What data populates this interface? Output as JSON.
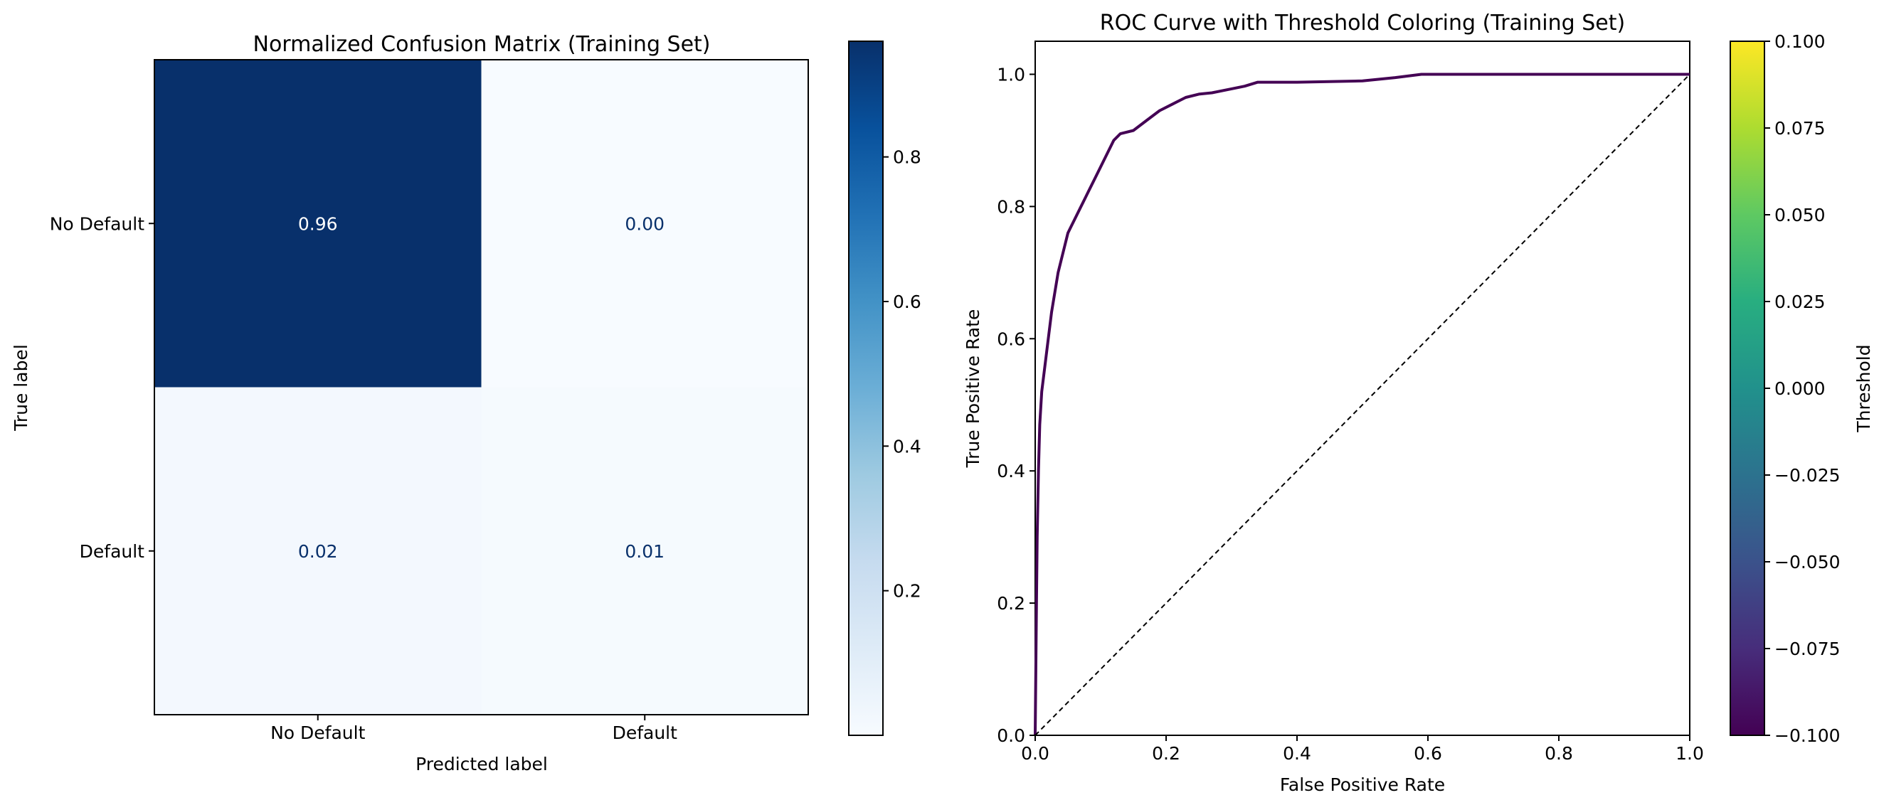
{
  "chart_data": [
    {
      "type": "heatmap",
      "title": "Normalized Confusion Matrix (Training Set)",
      "xlabel": "Predicted label",
      "ylabel": "True label",
      "x_categories": [
        "No Default",
        "Default"
      ],
      "y_categories": [
        "No Default",
        "Default"
      ],
      "values": [
        [
          0.96,
          0.0
        ],
        [
          0.02,
          0.01
        ]
      ],
      "cell_labels": [
        [
          "0.96",
          "0.00"
        ],
        [
          "0.02",
          "0.01"
        ]
      ],
      "colormap": "Blues",
      "colorbar": {
        "range": [
          0.0,
          0.96
        ],
        "ticks": [
          0.2,
          0.4,
          0.6,
          0.8
        ],
        "tick_labels": [
          "0.2",
          "0.4",
          "0.6",
          "0.8"
        ],
        "label": ""
      },
      "grid": false
    },
    {
      "type": "line",
      "title": "ROC Curve with Threshold Coloring (Training Set)",
      "xlabel": "False Positive Rate",
      "ylabel": "True Positive Rate",
      "xlim": [
        0,
        1
      ],
      "ylim": [
        0,
        1.05
      ],
      "x_ticks": [
        "0.0",
        "0.2",
        "0.4",
        "0.6",
        "0.8",
        "1.0"
      ],
      "y_ticks": [
        "0.0",
        "0.2",
        "0.4",
        "0.6",
        "0.8",
        "1.0"
      ],
      "series": [
        {
          "color": "#440154",
          "x": [
            0,
            0.001,
            0.002,
            0.003,
            0.005,
            0.007,
            0.01,
            0.015,
            0.02,
            0.025,
            0.03,
            0.035,
            0.04,
            0.045,
            0.05,
            0.055,
            0.06,
            0.07,
            0.08,
            0.09,
            0.1,
            0.11,
            0.12,
            0.13,
            0.15,
            0.17,
            0.19,
            0.21,
            0.23,
            0.25,
            0.27,
            0.3,
            0.32,
            0.34,
            0.4,
            0.5,
            0.55,
            0.59,
            0.7,
            0.8,
            0.9,
            1.0
          ],
          "y": [
            0,
            0.1,
            0.2,
            0.3,
            0.4,
            0.47,
            0.52,
            0.56,
            0.6,
            0.64,
            0.67,
            0.7,
            0.72,
            0.74,
            0.76,
            0.77,
            0.78,
            0.8,
            0.82,
            0.84,
            0.86,
            0.88,
            0.9,
            0.91,
            0.915,
            0.93,
            0.945,
            0.955,
            0.965,
            0.97,
            0.972,
            0.978,
            0.982,
            0.988,
            0.988,
            0.99,
            0.995,
            1.0,
            1.0,
            1.0,
            1.0,
            1.0
          ]
        },
        {
          "style": "dashed",
          "color": "#000000",
          "x": [
            0,
            1
          ],
          "y": [
            0,
            1
          ]
        }
      ],
      "colorbar": {
        "colormap": "viridis",
        "label": "Threshold",
        "range": [
          -0.1,
          0.1
        ],
        "ticks": [
          -0.1,
          -0.075,
          -0.05,
          -0.025,
          0.0,
          0.025,
          0.05,
          0.075,
          0.1
        ],
        "tick_labels": [
          "−0.100",
          "−0.075",
          "−0.050",
          "−0.025",
          "0.000",
          "0.025",
          "0.050",
          "0.075",
          "0.100"
        ]
      },
      "grid": false
    }
  ]
}
